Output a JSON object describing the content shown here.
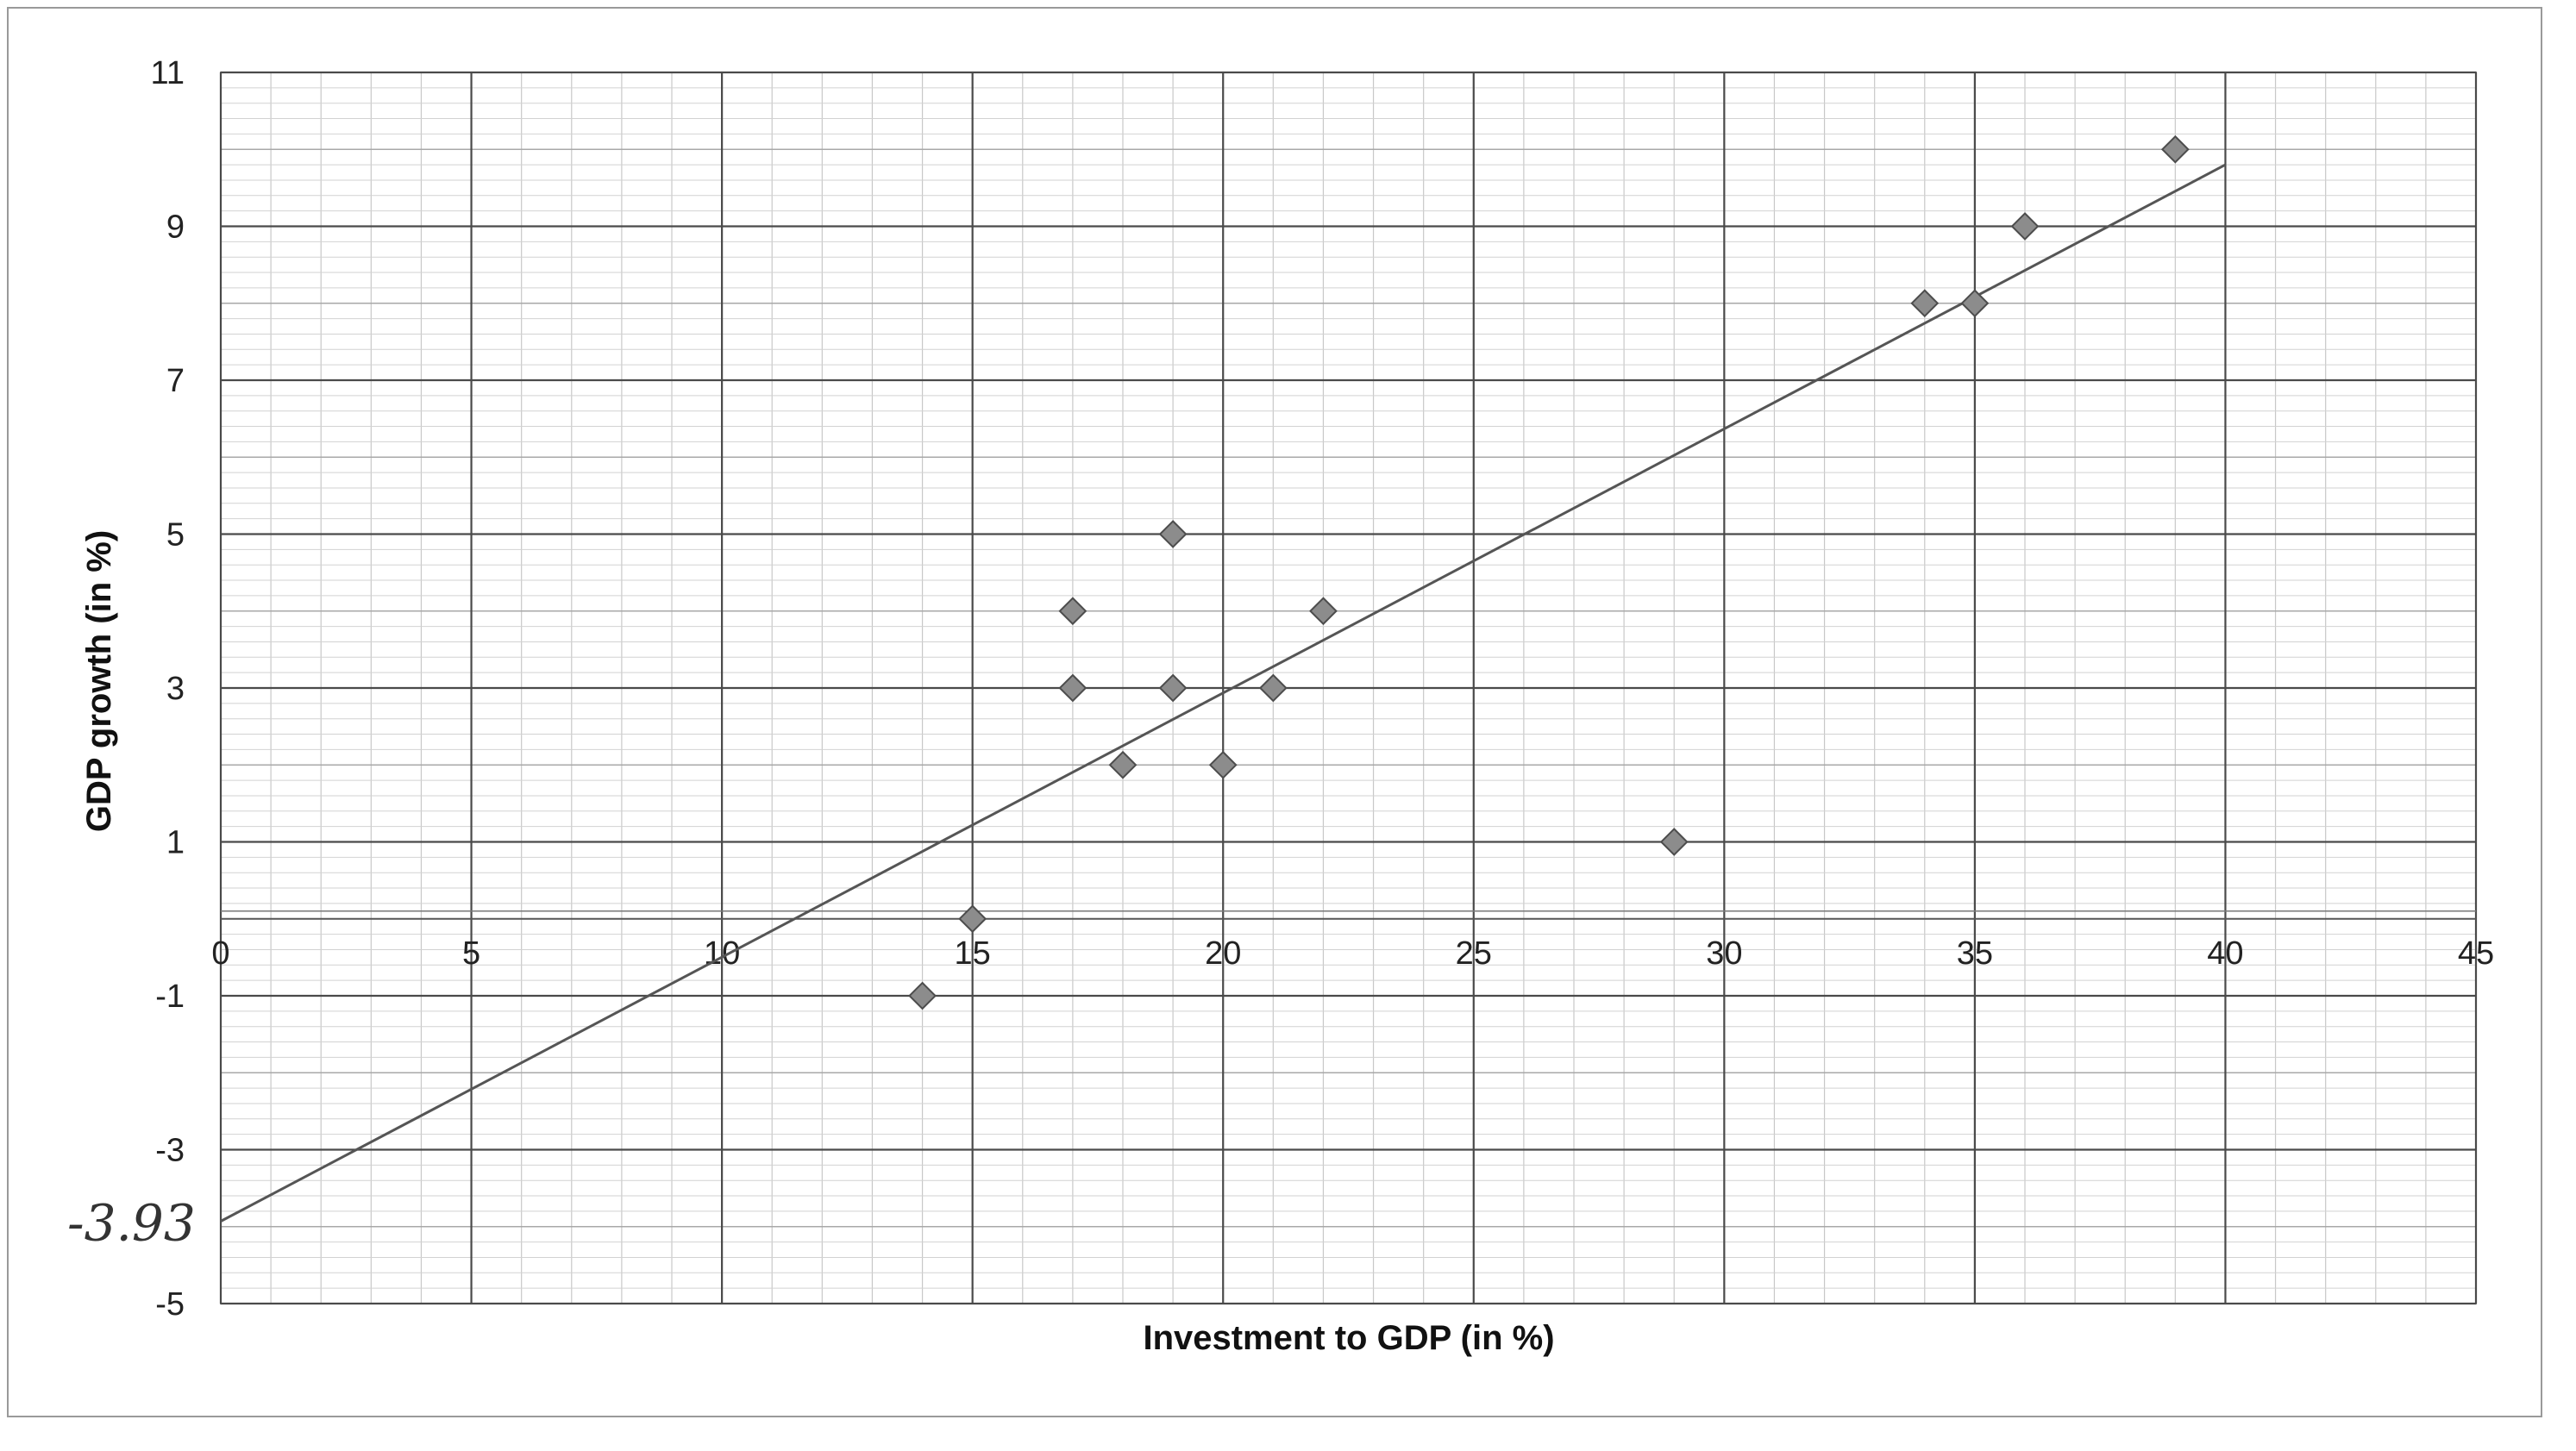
{
  "chart_data": {
    "type": "scatter",
    "title": "",
    "xlabel": "Investment to GDP (in %)",
    "ylabel": "GDP growth (in %)",
    "xlim": [
      0,
      45
    ],
    "ylim": [
      -5,
      11
    ],
    "x_ticks": [
      "0",
      "5",
      "10",
      "15",
      "20",
      "25",
      "30",
      "35",
      "40",
      "45"
    ],
    "y_ticks": [
      "11",
      "9",
      "7",
      "5",
      "3",
      "1",
      "-1",
      "-3",
      "-5"
    ],
    "x_tick_values": [
      0,
      5,
      10,
      15,
      20,
      25,
      30,
      35,
      40,
      45
    ],
    "y_tick_values": [
      11,
      9,
      7,
      5,
      3,
      1,
      -1,
      -3,
      -5
    ],
    "grid": true,
    "series": [
      {
        "marker": "diamond",
        "color": "#8c8c8c",
        "points": [
          {
            "x": 14,
            "y": -1
          },
          {
            "x": 15,
            "y": 0
          },
          {
            "x": 17,
            "y": 4
          },
          {
            "x": 17,
            "y": 3
          },
          {
            "x": 18,
            "y": 2
          },
          {
            "x": 19,
            "y": 5
          },
          {
            "x": 19,
            "y": 3
          },
          {
            "x": 20,
            "y": 2
          },
          {
            "x": 21,
            "y": 3
          },
          {
            "x": 22,
            "y": 4
          },
          {
            "x": 29,
            "y": 1
          },
          {
            "x": 34,
            "y": 8
          },
          {
            "x": 35,
            "y": 8
          },
          {
            "x": 36,
            "y": 9
          },
          {
            "x": 39,
            "y": 10
          }
        ]
      }
    ],
    "trend_line": {
      "x": [
        0,
        40
      ],
      "y": [
        -3.93,
        9.8
      ],
      "color": "#555555"
    },
    "annotations": [
      {
        "text": "-3.93",
        "x": 0,
        "y": -3.93
      }
    ]
  }
}
